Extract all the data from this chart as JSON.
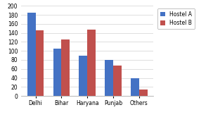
{
  "categories": [
    "Delhi",
    "Bihar",
    "Haryana",
    "Punjab",
    "Others"
  ],
  "hostel_a": [
    185,
    105,
    90,
    80,
    40
  ],
  "hostel_b": [
    145,
    125,
    148,
    67,
    15
  ],
  "color_a": "#4472C4",
  "color_b": "#C0504D",
  "legend_a": "Hostel A",
  "legend_b": "Hostel B",
  "ylim": [
    0,
    200
  ],
  "yticks": [
    0,
    20,
    40,
    60,
    80,
    100,
    120,
    140,
    160,
    180,
    200
  ],
  "background_color": "#FFFFFF",
  "grid_color": "#D9D9D9",
  "bar_width": 0.32,
  "figsize": [
    3.03,
    1.66
  ],
  "dpi": 100
}
